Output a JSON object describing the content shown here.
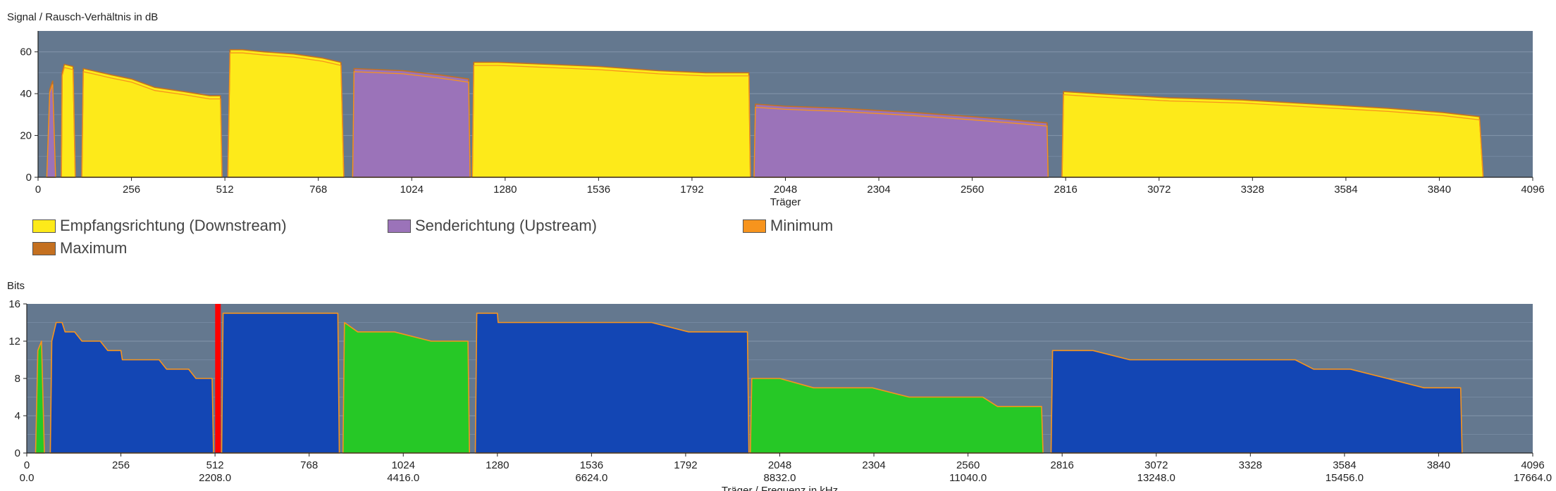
{
  "colors": {
    "plot_bg": "#64788f",
    "downstream": "#fdea1a",
    "upstream": "#9b73b9",
    "minimum": "#f7941d",
    "maximum": "#c47020",
    "bits_downstream": "#1346b4",
    "bits_upstream": "#26c826",
    "marker": "#ff0000"
  },
  "chart_data": [
    {
      "type": "area",
      "title": "Signal / Rausch-Verhältnis in dB",
      "xlabel": "Träger",
      "ylabel": "",
      "xlim": [
        0,
        4096
      ],
      "ylim": [
        0,
        70
      ],
      "xticks": [
        "0",
        "256",
        "512",
        "768",
        "1024",
        "1280",
        "1536",
        "1792",
        "2048",
        "2304",
        "2560",
        "2816",
        "3072",
        "3328",
        "3584",
        "3840",
        "4096"
      ],
      "yticks": [
        "0",
        "20",
        "40",
        "60"
      ],
      "grid": true,
      "legend_position": "bottom-left",
      "legend": [
        {
          "label": "Empfangsrichtung (Downstream)",
          "color": "#fdea1a"
        },
        {
          "label": "Senderichtung (Upstream)",
          "color": "#9b73b9"
        },
        {
          "label": "Minimum",
          "color": "#f7941d"
        },
        {
          "label": "Maximum",
          "color": "#c47020"
        }
      ],
      "series": [
        {
          "name": "Empfangsrichtung (Downstream)",
          "color": "#fdea1a",
          "segments": [
            [
              [
                64,
                0
              ],
              [
                66,
                50
              ],
              [
                72,
                54
              ],
              [
                96,
                53
              ],
              [
                102,
                0
              ]
            ],
            [
              [
                120,
                0
              ],
              [
                124,
                52
              ],
              [
                150,
                51
              ],
              [
                200,
                49
              ],
              [
                256,
                47
              ],
              [
                320,
                43
              ],
              [
                400,
                41
              ],
              [
                470,
                39
              ],
              [
                500,
                39
              ],
              [
                504,
                0
              ]
            ],
            [
              [
                520,
                0
              ],
              [
                526,
                61
              ],
              [
                560,
                61
              ],
              [
                620,
                60
              ],
              [
                700,
                59
              ],
              [
                780,
                57
              ],
              [
                830,
                55
              ],
              [
                838,
                0
              ]
            ],
            [
              [
                1190,
                0
              ],
              [
                1194,
                55
              ],
              [
                1260,
                55
              ],
              [
                1400,
                54
              ],
              [
                1536,
                53
              ],
              [
                1700,
                51
              ],
              [
                1830,
                50
              ],
              [
                1948,
                50
              ],
              [
                1952,
                0
              ]
            ],
            [
              [
                2806,
                0
              ],
              [
                2810,
                41
              ],
              [
                2900,
                40
              ],
              [
                3000,
                39
              ],
              [
                3100,
                38
              ],
              [
                3300,
                37
              ],
              [
                3500,
                35
              ],
              [
                3700,
                33
              ],
              [
                3850,
                31
              ],
              [
                3950,
                29
              ],
              [
                3960,
                0
              ]
            ]
          ]
        },
        {
          "name": "Senderichtung (Upstream)",
          "color": "#9b73b9",
          "segments": [
            [
              [
                24,
                0
              ],
              [
                32,
                42
              ],
              [
                40,
                46
              ],
              [
                48,
                0
              ]
            ],
            [
              [
                862,
                0
              ],
              [
                866,
                52
              ],
              [
                1000,
                51
              ],
              [
                1100,
                49
              ],
              [
                1180,
                47
              ],
              [
                1184,
                0
              ]
            ],
            [
              [
                1962,
                0
              ],
              [
                1966,
                35
              ],
              [
                2048,
                34
              ],
              [
                2200,
                33
              ],
              [
                2400,
                31
              ],
              [
                2560,
                29
              ],
              [
                2700,
                27
              ],
              [
                2765,
                26
              ],
              [
                2768,
                0
              ]
            ]
          ]
        }
      ]
    },
    {
      "type": "area",
      "title": "Bits",
      "xlabel": "Träger / Frequenz in kHz",
      "ylabel": "",
      "xlim": [
        0,
        4096
      ],
      "ylim": [
        0,
        16
      ],
      "xticks": [
        "0",
        "256",
        "512",
        "768",
        "1024",
        "1280",
        "1536",
        "1792",
        "2048",
        "2304",
        "2560",
        "2816",
        "3072",
        "3328",
        "3584",
        "3840",
        "4096"
      ],
      "xticks_secondary": [
        "0.0",
        "2208.0",
        "4416.0",
        "6624.0",
        "8832.0",
        "11040.0",
        "13248.0",
        "15456.0",
        "17664.0"
      ],
      "yticks": [
        "0",
        "4",
        "8",
        "12",
        "16"
      ],
      "grid": true,
      "marker_carrier": 520,
      "series": [
        {
          "name": "Downstream",
          "color": "#1346b4",
          "segments": [
            [
              [
                64,
                0
              ],
              [
                68,
                12
              ],
              [
                80,
                14
              ],
              [
                96,
                14
              ],
              [
                104,
                13
              ],
              [
                130,
                13
              ],
              [
                150,
                12
              ],
              [
                200,
                12
              ],
              [
                220,
                11
              ],
              [
                256,
                11
              ],
              [
                260,
                10
              ],
              [
                300,
                10
              ],
              [
                360,
                10
              ],
              [
                380,
                9
              ],
              [
                440,
                9
              ],
              [
                460,
                8
              ],
              [
                504,
                8
              ],
              [
                508,
                0
              ]
            ],
            [
              [
                530,
                0
              ],
              [
                534,
                15
              ],
              [
                600,
                15
              ],
              [
                700,
                15
              ],
              [
                846,
                15
              ],
              [
                850,
                0
              ]
            ],
            [
              [
                1220,
                0
              ],
              [
                1224,
                15
              ],
              [
                1280,
                15
              ],
              [
                1282,
                14
              ],
              [
                1400,
                14
              ],
              [
                1536,
                14
              ],
              [
                1700,
                14
              ],
              [
                1800,
                13
              ],
              [
                1960,
                13
              ],
              [
                1964,
                0
              ]
            ],
            [
              [
                2786,
                0
              ],
              [
                2790,
                11
              ],
              [
                2900,
                11
              ],
              [
                3000,
                10
              ],
              [
                3200,
                10
              ],
              [
                3400,
                10
              ],
              [
                3450,
                10
              ],
              [
                3500,
                9
              ],
              [
                3600,
                9
              ],
              [
                3700,
                8
              ],
              [
                3800,
                7
              ],
              [
                3880,
                7
              ],
              [
                3900,
                7
              ],
              [
                3904,
                0
              ]
            ]
          ]
        },
        {
          "name": "Upstream",
          "color": "#26c826",
          "segments": [
            [
              [
                24,
                0
              ],
              [
                30,
                11
              ],
              [
                40,
                12
              ],
              [
                48,
                0
              ]
            ],
            [
              [
                860,
                0
              ],
              [
                864,
                14
              ],
              [
                900,
                13
              ],
              [
                1000,
                13
              ],
              [
                1100,
                12
              ],
              [
                1200,
                12
              ],
              [
                1204,
                0
              ]
            ],
            [
              [
                1968,
                0
              ],
              [
                1972,
                8
              ],
              [
                2048,
                8
              ],
              [
                2140,
                7
              ],
              [
                2300,
                7
              ],
              [
                2400,
                6
              ],
              [
                2600,
                6
              ],
              [
                2640,
                5
              ],
              [
                2760,
                5
              ],
              [
                2764,
                0
              ]
            ]
          ]
        }
      ]
    }
  ]
}
